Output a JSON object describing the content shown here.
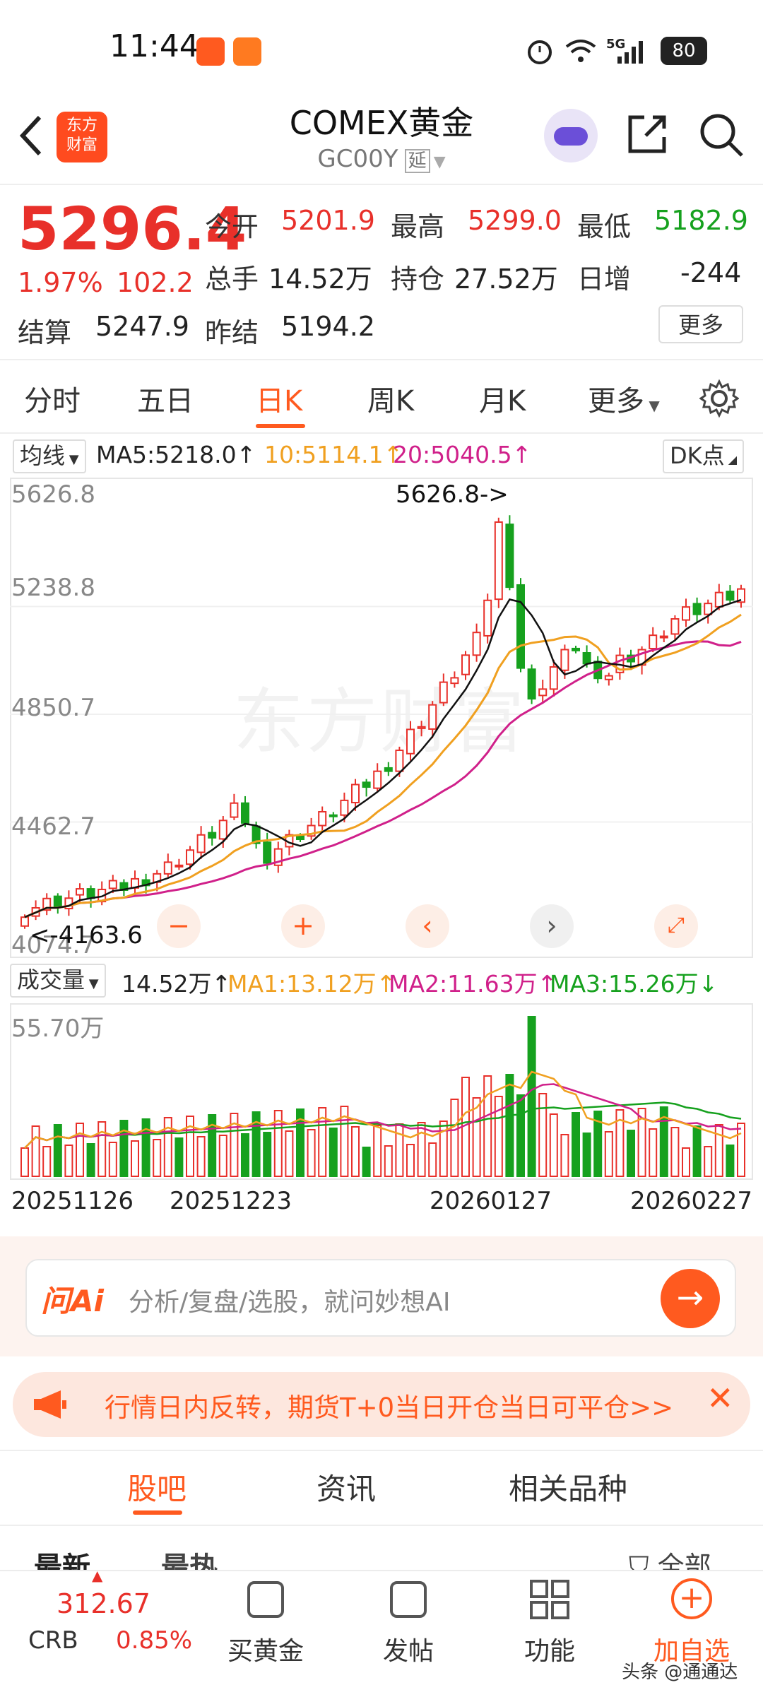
{
  "status_bar": {
    "time": "11:44",
    "battery": "80",
    "network": "5G"
  },
  "header": {
    "title": "COMEX黄金",
    "code": "GC00Y",
    "delay_badge": "延",
    "logo_text_line1": "东方",
    "logo_text_line2": "财富"
  },
  "quote": {
    "price": "5296.4",
    "change_pct": "1.97%",
    "change": "102.2",
    "open_label": "今开",
    "open": "5201.9",
    "high_label": "最高",
    "high": "5299.0",
    "low_label": "最低",
    "low": "5182.9",
    "volume_label": "总手",
    "volume": "14.52万",
    "oi_label": "持仓",
    "oi": "27.52万",
    "daily_inc_label": "日增",
    "daily_inc": "-244",
    "settle_label": "结算",
    "settle": "5247.9",
    "prev_settle_label": "昨结",
    "prev_settle": "5194.2",
    "more_label": "更多"
  },
  "tabs": [
    "分时",
    "五日",
    "日K",
    "周K",
    "月K",
    "更多"
  ],
  "active_tab": "日K",
  "chart": {
    "indicator_select": "均线",
    "ma5": "MA5:5218.0↑",
    "ma10": "10:5114.1↑",
    "ma20": "20:5040.5↑",
    "dk_label": "DK点",
    "y_labels": [
      "5626.8",
      "5238.8",
      "4850.7",
      "4462.7",
      "4074.7"
    ],
    "max_marker": "5626.8->",
    "min_marker": "<-4163.6",
    "watermark": "东方财富"
  },
  "volume": {
    "select": "成交量",
    "value": "14.52万↑",
    "ma1": "MA1:13.12万↑",
    "ma2": "MA2:11.63万↑",
    "ma3": "MA3:15.26万↓",
    "y_top": "55.70万",
    "dates": [
      "20251126",
      "20251223",
      "20260127",
      "20260227"
    ]
  },
  "ai": {
    "brand": "问Ai",
    "placeholder": "分析/复盘/选股，就问妙想AI"
  },
  "notice": {
    "text": "行情日内反转，期货T+0当日开仓当日可平仓>>"
  },
  "bottom_tabs": [
    "股吧",
    "资讯",
    "相关品种"
  ],
  "active_bottom_tab": "股吧",
  "sort_tabs": [
    "最新",
    "最热"
  ],
  "filter_label": "全部",
  "bottom_bar": {
    "crb_value": "312.67",
    "crb_label": "CRB",
    "crb_change": "0.85%",
    "items": [
      "买黄金",
      "发帖",
      "功能",
      "加自选"
    ]
  },
  "watermark_footer": "头条 @通通达",
  "colors": {
    "up": "#e8302a",
    "down": "#16a11e",
    "accent": "#ff5a1f",
    "ma5": "#111111",
    "ma10": "#f0a020",
    "ma20": "#d0208a"
  }
}
